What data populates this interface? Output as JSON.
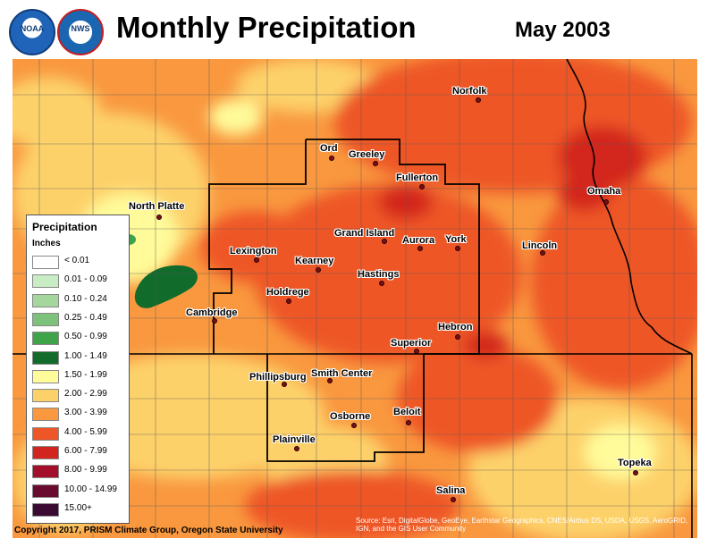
{
  "header": {
    "title": "Monthly Precipitation",
    "period": "May 2003",
    "logos": [
      "noaa-logo",
      "nws-logo"
    ]
  },
  "legend": {
    "title": "Precipitation",
    "units": "Inches",
    "classes": [
      {
        "label": "< 0.01",
        "color": "#ffffff"
      },
      {
        "label": "0.01 - 0.09",
        "color": "#c8ecc3"
      },
      {
        "label": "0.10 - 0.24",
        "color": "#a3d79c"
      },
      {
        "label": "0.25 - 0.49",
        "color": "#7cc27a"
      },
      {
        "label": "0.50 - 0.99",
        "color": "#3fa34a"
      },
      {
        "label": "1.00 - 1.49",
        "color": "#116b2a"
      },
      {
        "label": "1.50 - 1.99",
        "color": "#fffb9a"
      },
      {
        "label": "2.00 - 2.99",
        "color": "#fdd16a"
      },
      {
        "label": "3.00 - 3.99",
        "color": "#f9983f"
      },
      {
        "label": "4.00 - 5.99",
        "color": "#ee5628"
      },
      {
        "label": "6.00 - 7.99",
        "color": "#d3251f"
      },
      {
        "label": "8.00 - 9.99",
        "color": "#a30e2a"
      },
      {
        "label": "10.00 - 14.99",
        "color": "#6b0a2f"
      },
      {
        "label": "15.00+",
        "color": "#3a0a33"
      }
    ]
  },
  "cities": [
    {
      "name": "Norfolk"
    },
    {
      "name": "Ord"
    },
    {
      "name": "Greeley"
    },
    {
      "name": "Fullerton"
    },
    {
      "name": "North Platte"
    },
    {
      "name": "Grand Island"
    },
    {
      "name": "Aurora"
    },
    {
      "name": "York"
    },
    {
      "name": "Omaha"
    },
    {
      "name": "Lexington"
    },
    {
      "name": "Kearney"
    },
    {
      "name": "Lincoln"
    },
    {
      "name": "Hastings"
    },
    {
      "name": "Holdrege"
    },
    {
      "name": "Cambridge"
    },
    {
      "name": "Hebron"
    },
    {
      "name": "Superior"
    },
    {
      "name": "Phillipsburg"
    },
    {
      "name": "Smith Center"
    },
    {
      "name": "Beloit"
    },
    {
      "name": "Osborne"
    },
    {
      "name": "Plainville"
    },
    {
      "name": "Topeka"
    },
    {
      "name": "Salina"
    }
  ],
  "footer": {
    "copyright": "Copyright 2017, PRISM Climate Group, Oregon State University",
    "source": "Source: Esri, DigitalGlobe, GeoEye, Earthstar Geographics, CNES/Airbus DS, USDA, USGS, AeroGRID, IGN, and the GIS User Community"
  }
}
